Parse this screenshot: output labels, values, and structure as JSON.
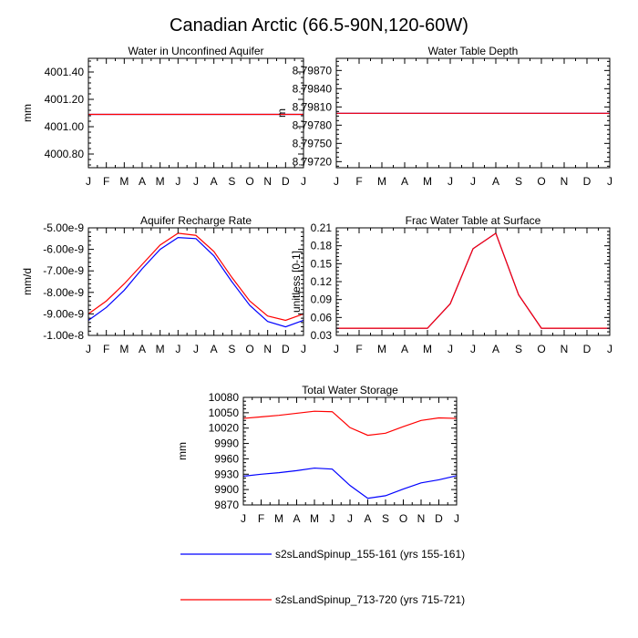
{
  "figure": {
    "title": "Canadian Arctic (66.5-90N,120-60W)"
  },
  "months": [
    "J",
    "F",
    "M",
    "A",
    "M",
    "J",
    "J",
    "A",
    "S",
    "O",
    "N",
    "D",
    "J"
  ],
  "colors": {
    "run1": "#0000ff",
    "run2": "#ff0000",
    "axis": "#000000"
  },
  "legend": [
    {
      "label": "s2sLandSpinup_155-161 (yrs 155-161)",
      "color": "#0000ff"
    },
    {
      "label": "s2sLandSpinup_713-720 (yrs 715-721)",
      "color": "#ff0000"
    }
  ],
  "chart_data": [
    {
      "type": "line",
      "title": "Water in Unconfined Aquifer",
      "ylabel": "mm",
      "ylim": [
        4000.7,
        4001.5
      ],
      "yticks": [
        4000.8,
        4001.0,
        4001.2,
        4001.4
      ],
      "ytick_labels": [
        "4000.80",
        "4001.00",
        "4001.20",
        "4001.40"
      ],
      "series": [
        {
          "name": "s2sLandSpinup_155-161 (yrs 155-161)",
          "values": [
            4001.09,
            4001.09,
            4001.09,
            4001.09,
            4001.09,
            4001.09,
            4001.09,
            4001.09,
            4001.09,
            4001.09,
            4001.09,
            4001.09,
            4001.09
          ]
        },
        {
          "name": "s2sLandSpinup_713-720 (yrs 715-721)",
          "values": [
            4001.09,
            4001.09,
            4001.09,
            4001.09,
            4001.09,
            4001.09,
            4001.09,
            4001.09,
            4001.09,
            4001.09,
            4001.09,
            4001.09,
            4001.09
          ]
        }
      ]
    },
    {
      "type": "line",
      "title": "Water Table Depth",
      "ylabel": "m",
      "ylim": [
        8.7971,
        8.7989
      ],
      "yticks": [
        8.7972,
        8.7975,
        8.7978,
        8.7981,
        8.7984,
        8.7987
      ],
      "ytick_labels": [
        "8.79720",
        "8.79750",
        "8.79780",
        "8.79810",
        "8.79840",
        "8.79870"
      ],
      "series": [
        {
          "name": "s2sLandSpinup_155-161 (yrs 155-161)",
          "values": [
            8.797995,
            8.797995,
            8.797995,
            8.797995,
            8.797995,
            8.797995,
            8.797995,
            8.797995,
            8.797995,
            8.797995,
            8.797995,
            8.797995,
            8.797995
          ]
        },
        {
          "name": "s2sLandSpinup_713-720 (yrs 715-721)",
          "values": [
            8.797995,
            8.797995,
            8.797995,
            8.797995,
            8.797995,
            8.797995,
            8.797995,
            8.797995,
            8.797995,
            8.797995,
            8.797995,
            8.797995,
            8.797995
          ]
        }
      ]
    },
    {
      "type": "line",
      "title": "Aquifer Recharge Rate",
      "ylabel": "mm/d",
      "ylim": [
        -1e-08,
        -5e-09
      ],
      "yticks": [
        -1e-08,
        -9e-09,
        -8e-09,
        -7e-09,
        -6e-09,
        -5e-09
      ],
      "ytick_labels": [
        "-1.00e-8",
        "-9.00e-9",
        "-8.00e-9",
        "-7.00e-9",
        "-6.00e-9",
        "-5.00e-9"
      ],
      "series": [
        {
          "name": "s2sLandSpinup_155-161 (yrs 155-161)",
          "values": [
            -9.3e-09,
            -8.7e-09,
            -7.9e-09,
            -6.9e-09,
            -6e-09,
            -5.45e-09,
            -5.5e-09,
            -6.3e-09,
            -7.5e-09,
            -8.6e-09,
            -9.35e-09,
            -9.6e-09,
            -9.3e-09
          ]
        },
        {
          "name": "s2sLandSpinup_713-720 (yrs 715-721)",
          "values": [
            -9e-09,
            -8.4e-09,
            -7.6e-09,
            -6.7e-09,
            -5.8e-09,
            -5.25e-09,
            -5.35e-09,
            -6.1e-09,
            -7.3e-09,
            -8.4e-09,
            -9.1e-09,
            -9.3e-09,
            -9e-09
          ]
        }
      ]
    },
    {
      "type": "line",
      "title": "Frac Water Table at Surface",
      "ylabel": "unitless [0-1]",
      "ylim": [
        0.03,
        0.21
      ],
      "yticks": [
        0.03,
        0.06,
        0.09,
        0.12,
        0.15,
        0.18,
        0.21
      ],
      "ytick_labels": [
        "0.03",
        "0.06",
        "0.09",
        "0.12",
        "0.15",
        "0.18",
        "0.21"
      ],
      "series": [
        {
          "name": "s2sLandSpinup_155-161 (yrs 155-161)",
          "values": [
            0.042,
            0.042,
            0.042,
            0.042,
            0.042,
            0.083,
            0.175,
            0.201,
            0.098,
            0.042,
            0.042,
            0.042,
            0.042
          ]
        },
        {
          "name": "s2sLandSpinup_713-720 (yrs 715-721)",
          "values": [
            0.042,
            0.042,
            0.042,
            0.042,
            0.042,
            0.083,
            0.175,
            0.201,
            0.098,
            0.042,
            0.042,
            0.042,
            0.042
          ]
        }
      ]
    },
    {
      "type": "line",
      "title": "Total Water Storage",
      "ylabel": "mm",
      "ylim": [
        9870,
        10080
      ],
      "yticks": [
        9870,
        9900,
        9930,
        9960,
        9990,
        10020,
        10050,
        10080
      ],
      "ytick_labels": [
        "9870",
        "9900",
        "9930",
        "9960",
        "9990",
        "10020",
        "10050",
        "10080"
      ],
      "series": [
        {
          "name": "s2sLandSpinup_155-161 (yrs 155-161)",
          "values": [
            9926,
            9930,
            9933,
            9937,
            9942,
            9940,
            9908,
            9883,
            9888,
            9901,
            9913,
            9919,
            9927
          ]
        },
        {
          "name": "s2sLandSpinup_713-720 (yrs 715-721)",
          "values": [
            10039,
            10042,
            10045,
            10049,
            10053,
            10052,
            10021,
            10006,
            10010,
            10023,
            10035,
            10040,
            10039
          ]
        }
      ]
    }
  ]
}
